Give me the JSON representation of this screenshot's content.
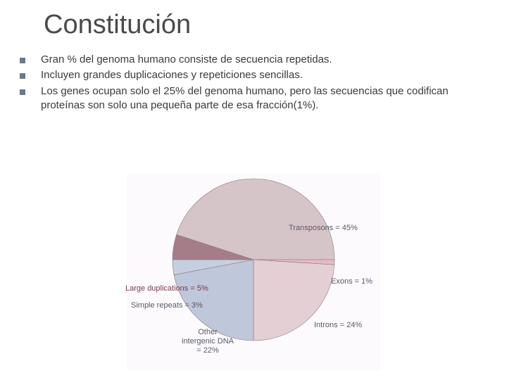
{
  "title": "Constitución",
  "bullets": [
    "Gran % del genoma humano consiste de secuencia repetidas.",
    "Incluyen grandes duplicaciones y repeticiones sencillas.",
    "Los genes ocupan solo el 25% del genoma humano, pero las secuencias que codifican proteínas son solo una pequeña parte de esa fracción(1%)."
  ],
  "chart": {
    "type": "pie",
    "background": "#fcfafc",
    "stroke": "#8a7a7a",
    "stroke_width": 0.6,
    "radius": 115,
    "slices": [
      {
        "label": "Transposons = 45%",
        "value": 45,
        "color": "#d6c5c8"
      },
      {
        "label": "Exons = 1%",
        "value": 1,
        "color": "#e6b9c2"
      },
      {
        "label": "Introns = 24%",
        "value": 24,
        "color": "#e4cfd5"
      },
      {
        "label": "Other intergenic DNA = 22%",
        "value": 22,
        "color": "#bfc7da"
      },
      {
        "label": "Simple repeats = 3%",
        "value": 3,
        "color": "#c7cfdf"
      },
      {
        "label": "Large duplications = 5%",
        "value": 5,
        "color": "#a57d88"
      }
    ],
    "labels": {
      "trans": "Transposons = 45%",
      "exons": "Exons = 1%",
      "introns": "Introns = 24%",
      "other_l1": "Other",
      "other_l2": "intergenic DNA",
      "other_l3": "= 22%",
      "simple": "Simple repeats = 3%",
      "dup": "Large duplications = 5%"
    }
  }
}
